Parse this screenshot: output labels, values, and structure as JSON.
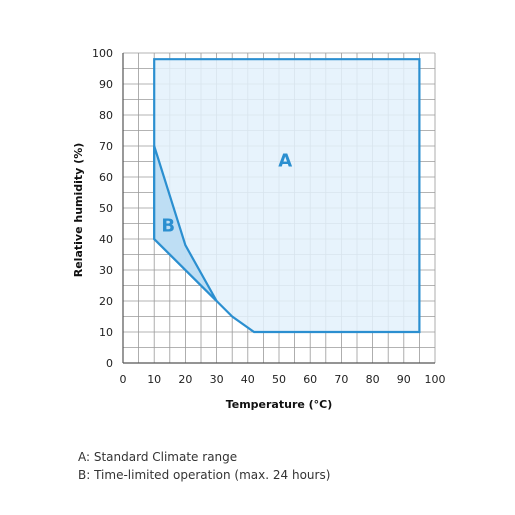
{
  "chart_data": {
    "type": "area",
    "xlabel": "Temperature (°C)",
    "ylabel": "Relative humidity (%)",
    "xlim": [
      0,
      100
    ],
    "ylim": [
      0,
      100
    ],
    "x_ticks": [
      0,
      10,
      20,
      30,
      40,
      50,
      60,
      70,
      80,
      90,
      100
    ],
    "y_ticks": [
      0,
      10,
      20,
      30,
      40,
      50,
      60,
      70,
      80,
      90,
      100
    ],
    "grid": true,
    "grid_minor_step": 5,
    "regions": [
      {
        "label": "A",
        "points": [
          [
            10,
            40
          ],
          [
            10,
            98
          ],
          [
            95,
            98
          ],
          [
            95,
            10
          ],
          [
            42,
            10
          ],
          [
            35,
            15
          ],
          [
            30,
            20
          ]
        ]
      },
      {
        "label": "B",
        "points": [
          [
            10,
            40
          ],
          [
            10,
            70
          ],
          [
            20,
            38
          ],
          [
            30,
            20
          ]
        ]
      }
    ],
    "colors": {
      "outline": "#2b8fd0",
      "region_a_fill": "#e3f1fb",
      "region_b_fill": "#b9dcf3",
      "grid": "#9a9a9a",
      "axis": "#555555"
    }
  },
  "legend": {
    "a": "A: Standard Climate range",
    "b": "B: Time-limited operation (max. 24 hours)"
  }
}
